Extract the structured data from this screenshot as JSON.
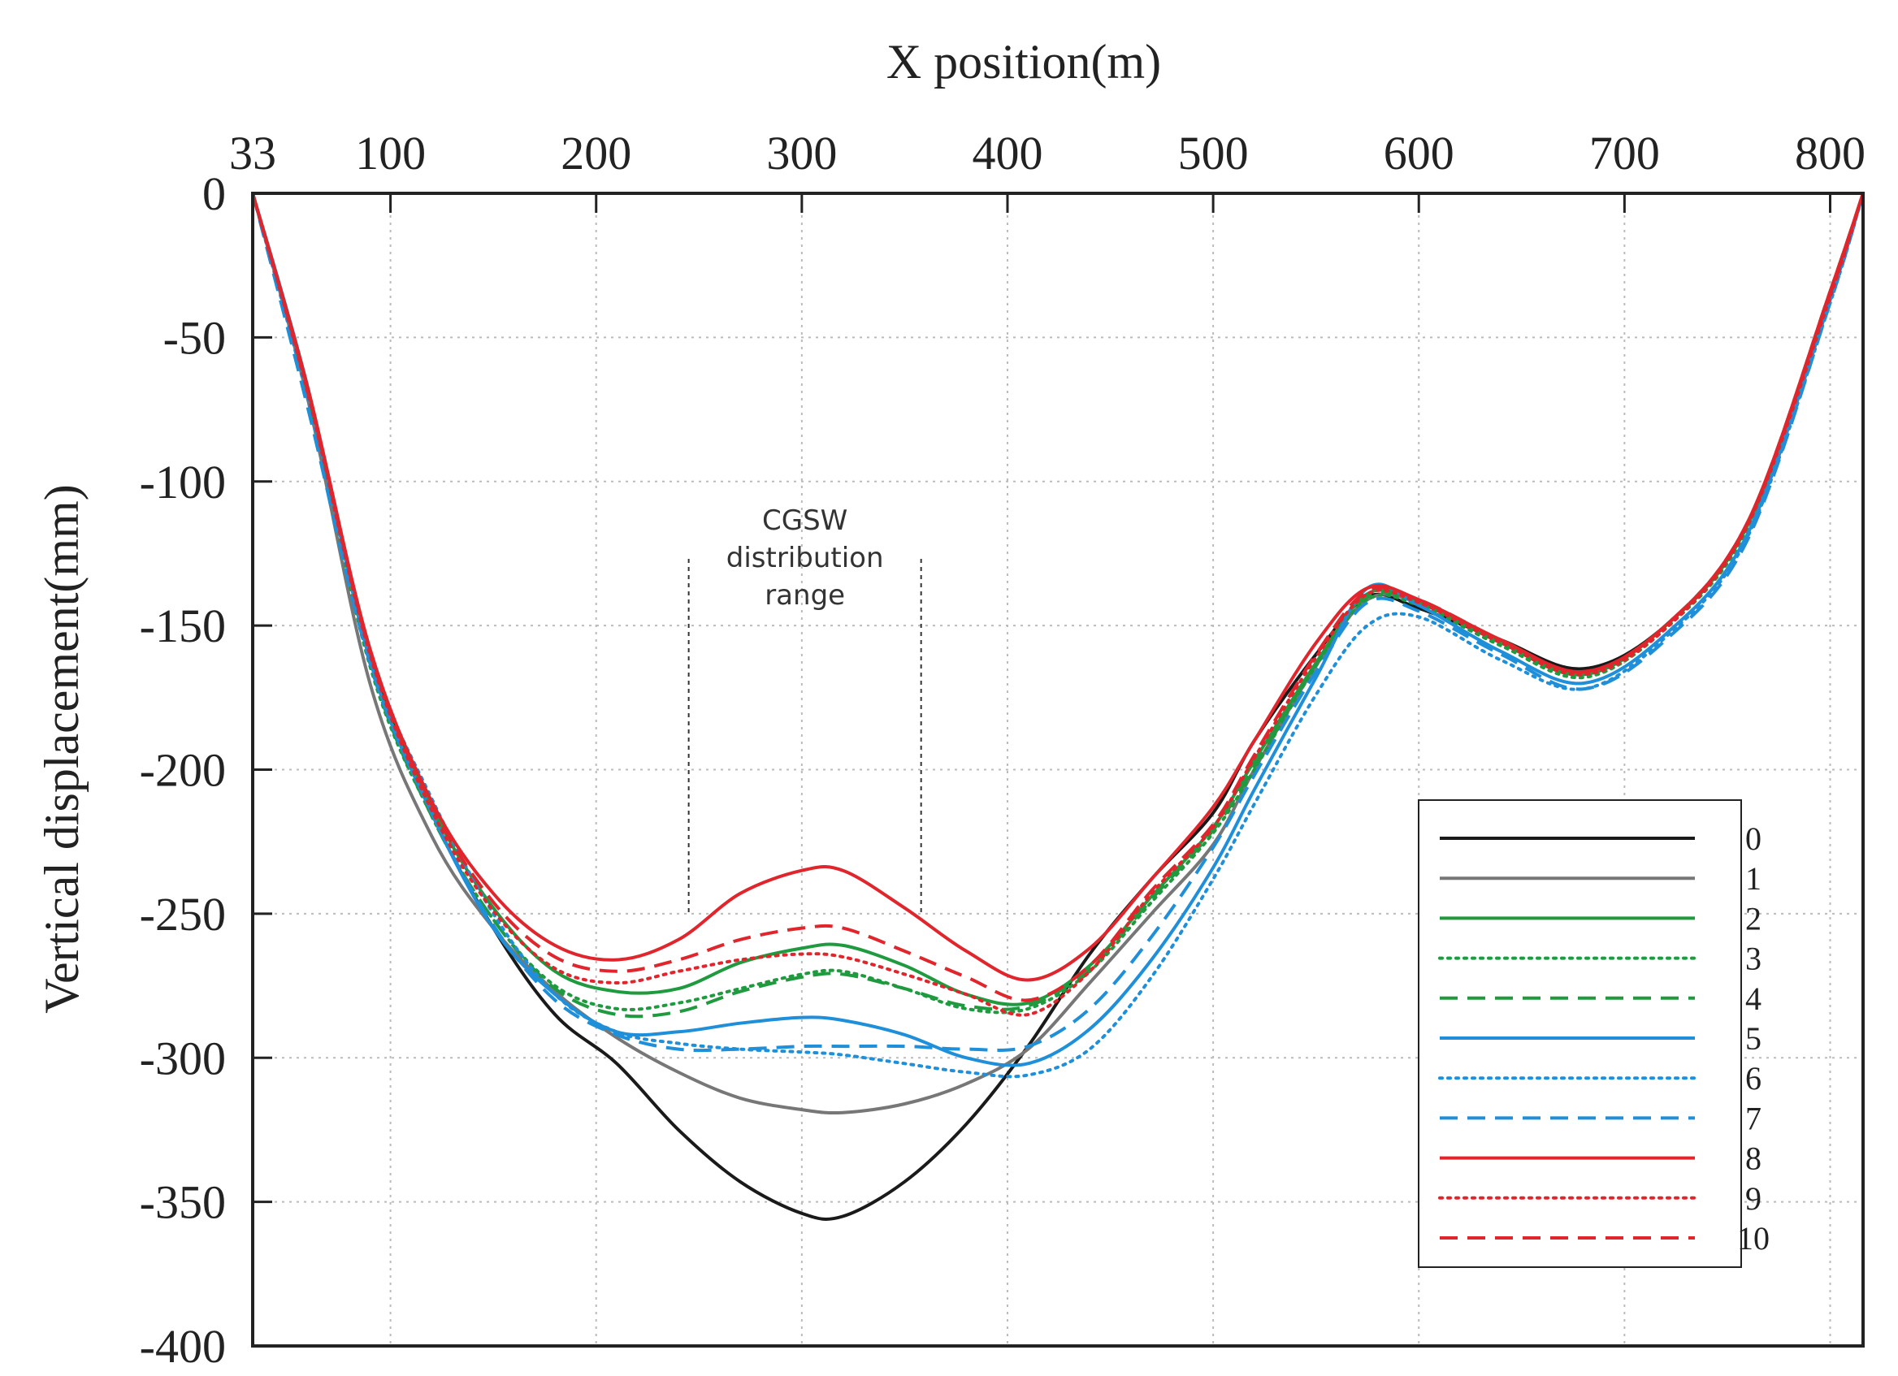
{
  "chart_data": {
    "type": "line",
    "title": "",
    "xlabel": "X position(m)",
    "ylabel": "Vertical displacement(mm)",
    "xlim": [
      33,
      816
    ],
    "ylim": [
      -400,
      0
    ],
    "xticks": [
      33,
      100,
      200,
      300,
      400,
      500,
      600,
      700,
      800
    ],
    "xtick_labels": [
      "33",
      "100",
      "200",
      "300",
      "400",
      "500",
      "600",
      "700",
      "800"
    ],
    "yticks": [
      0,
      -50,
      -100,
      -150,
      -200,
      -250,
      -300,
      -350,
      -400
    ],
    "ytick_labels": [
      "0",
      "-50",
      "-100",
      "-150",
      "-200",
      "-250",
      "-300",
      "-350",
      "-400"
    ],
    "grid": true,
    "legend_position": "right",
    "annotation": {
      "lines": [
        "CGSW",
        "distribution",
        "range"
      ],
      "x_range": [
        245,
        358
      ]
    },
    "series": [
      {
        "name": "0",
        "color": "#1a1a1a",
        "dash": "solid",
        "x": [
          33,
          60,
          90,
          120,
          150,
          180,
          210,
          240,
          270,
          300,
          320,
          350,
          380,
          410,
          440,
          470,
          500,
          520,
          550,
          575,
          600,
          640,
          680,
          720,
          760,
          800,
          816
        ],
        "y": [
          0,
          -70,
          -160,
          -215,
          -255,
          -285,
          -302,
          -325,
          -343,
          -354,
          -355,
          -343,
          -323,
          -296,
          -264,
          -238,
          -215,
          -190,
          -160,
          -140,
          -144,
          -155,
          -165,
          -150,
          -115,
          -35,
          0
        ]
      },
      {
        "name": "1",
        "color": "#777777",
        "dash": "solid",
        "x": [
          33,
          60,
          90,
          120,
          150,
          180,
          210,
          240,
          270,
          300,
          320,
          350,
          380,
          410,
          440,
          470,
          500,
          520,
          550,
          575,
          600,
          640,
          680,
          720,
          760,
          800,
          816
        ],
        "y": [
          0,
          -72,
          -170,
          -223,
          -255,
          -277,
          -293,
          -305,
          -314,
          -318,
          -319,
          -316,
          -309,
          -297,
          -274,
          -250,
          -226,
          -200,
          -164,
          -141,
          -142,
          -155,
          -167,
          -150,
          -115,
          -35,
          0
        ]
      },
      {
        "name": "2",
        "color": "#1f9a3f",
        "dash": "solid",
        "x": [
          33,
          60,
          90,
          120,
          150,
          180,
          210,
          240,
          270,
          300,
          320,
          350,
          380,
          410,
          440,
          470,
          500,
          520,
          550,
          575,
          600,
          640,
          680,
          720,
          760,
          800,
          816
        ],
        "y": [
          0,
          -68,
          -162,
          -213,
          -248,
          -270,
          -277,
          -276,
          -267,
          -262,
          -261,
          -268,
          -278,
          -281,
          -268,
          -244,
          -220,
          -197,
          -163,
          -139,
          -142,
          -156,
          -167,
          -150,
          -115,
          -35,
          0
        ]
      },
      {
        "name": "3",
        "color": "#1f9a3f",
        "dash": "dot",
        "x": [
          33,
          60,
          90,
          120,
          150,
          180,
          210,
          240,
          270,
          300,
          320,
          350,
          380,
          410,
          440,
          470,
          500,
          520,
          550,
          575,
          600,
          640,
          680,
          720,
          760,
          800,
          816
        ],
        "y": [
          0,
          -70,
          -164,
          -216,
          -252,
          -275,
          -283,
          -281,
          -276,
          -271,
          -270,
          -276,
          -283,
          -283,
          -270,
          -246,
          -222,
          -200,
          -164,
          -141,
          -143,
          -157,
          -168,
          -151,
          -116,
          -36,
          0
        ]
      },
      {
        "name": "4",
        "color": "#1f9a3f",
        "dash": "dash",
        "x": [
          33,
          60,
          90,
          120,
          150,
          180,
          210,
          240,
          270,
          300,
          320,
          350,
          380,
          410,
          440,
          470,
          500,
          520,
          550,
          575,
          600,
          640,
          680,
          720,
          760,
          800,
          816
        ],
        "y": [
          0,
          -70,
          -163,
          -216,
          -252,
          -276,
          -285,
          -284,
          -277,
          -272,
          -271,
          -276,
          -282,
          -282,
          -269,
          -245,
          -221,
          -199,
          -163,
          -140,
          -142,
          -156,
          -167,
          -150,
          -114,
          -34,
          0
        ]
      },
      {
        "name": "5",
        "color": "#1e8fd8",
        "dash": "solid",
        "x": [
          33,
          60,
          90,
          120,
          150,
          180,
          210,
          240,
          270,
          300,
          320,
          350,
          380,
          410,
          440,
          470,
          500,
          520,
          550,
          575,
          600,
          640,
          680,
          720,
          760,
          800,
          816
        ],
        "y": [
          0,
          -68,
          -162,
          -215,
          -255,
          -278,
          -291,
          -291,
          -288,
          -286,
          -287,
          -292,
          -300,
          -302,
          -290,
          -266,
          -234,
          -207,
          -168,
          -137,
          -143,
          -159,
          -170,
          -153,
          -118,
          -37,
          0
        ]
      },
      {
        "name": "6",
        "color": "#1e8fd8",
        "dash": "dot",
        "x": [
          33,
          60,
          90,
          120,
          150,
          180,
          210,
          240,
          270,
          300,
          320,
          350,
          380,
          410,
          440,
          470,
          500,
          520,
          550,
          575,
          600,
          640,
          680,
          720,
          760,
          800,
          816
        ],
        "y": [
          0,
          -72,
          -160,
          -210,
          -250,
          -278,
          -291,
          -295,
          -297,
          -298,
          -299,
          -302,
          -305,
          -306,
          -297,
          -272,
          -238,
          -212,
          -174,
          -150,
          -147,
          -162,
          -172,
          -154,
          -119,
          -38,
          0
        ]
      },
      {
        "name": "7",
        "color": "#1e8fd8",
        "dash": "dash",
        "x": [
          33,
          60,
          90,
          120,
          150,
          180,
          210,
          240,
          270,
          300,
          320,
          350,
          380,
          410,
          440,
          470,
          500,
          520,
          550,
          575,
          600,
          640,
          680,
          720,
          760,
          800,
          816
        ],
        "y": [
          0,
          -75,
          -163,
          -215,
          -254,
          -280,
          -292,
          -297,
          -297,
          -296,
          -296,
          -296,
          -297,
          -296,
          -283,
          -258,
          -227,
          -202,
          -166,
          -142,
          -145,
          -160,
          -172,
          -155,
          -120,
          -38,
          0
        ]
      },
      {
        "name": "8",
        "color": "#e0262c",
        "dash": "solid",
        "x": [
          33,
          60,
          90,
          120,
          150,
          180,
          210,
          240,
          270,
          300,
          320,
          350,
          380,
          410,
          440,
          470,
          500,
          520,
          550,
          575,
          600,
          640,
          680,
          720,
          760,
          800,
          816
        ],
        "y": [
          0,
          -68,
          -158,
          -211,
          -243,
          -261,
          -266,
          -259,
          -243,
          -235,
          -235,
          -248,
          -263,
          -273,
          -262,
          -238,
          -213,
          -190,
          -156,
          -137,
          -141,
          -155,
          -166,
          -150,
          -114,
          -34,
          0
        ]
      },
      {
        "name": "9",
        "color": "#e0262c",
        "dash": "dot",
        "x": [
          33,
          60,
          90,
          120,
          150,
          180,
          210,
          240,
          270,
          300,
          320,
          350,
          380,
          410,
          440,
          470,
          500,
          520,
          550,
          575,
          600,
          640,
          680,
          720,
          760,
          800,
          816
        ],
        "y": [
          0,
          -70,
          -160,
          -214,
          -249,
          -269,
          -274,
          -270,
          -266,
          -264,
          -265,
          -271,
          -278,
          -285,
          -270,
          -243,
          -220,
          -196,
          -161,
          -139,
          -142,
          -156,
          -167,
          -151,
          -115,
          -36,
          0
        ]
      },
      {
        "name": "10",
        "color": "#e0262c",
        "dash": "dash",
        "x": [
          33,
          60,
          90,
          120,
          150,
          180,
          210,
          240,
          270,
          300,
          320,
          350,
          380,
          410,
          440,
          470,
          500,
          520,
          550,
          575,
          600,
          640,
          680,
          720,
          760,
          800,
          816
        ],
        "y": [
          0,
          -69,
          -159,
          -212,
          -246,
          -265,
          -270,
          -266,
          -259,
          -255,
          -255,
          -263,
          -272,
          -280,
          -268,
          -242,
          -219,
          -195,
          -160,
          -138,
          -141,
          -155,
          -166,
          -150,
          -114,
          -35,
          0
        ]
      }
    ]
  }
}
